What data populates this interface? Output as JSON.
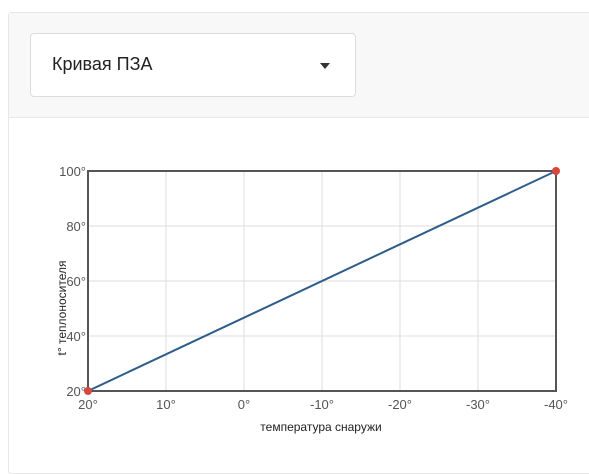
{
  "selector": {
    "selected": "Кривая ПЗА"
  },
  "chart_data": {
    "type": "line",
    "xlabel": "температура снаружи",
    "ylabel": "t° теплоносителя",
    "x_ticks": [
      "20°",
      "10°",
      "0°",
      "-10°",
      "-20°",
      "-30°",
      "-40°"
    ],
    "x_tick_values": [
      20,
      10,
      0,
      -10,
      -20,
      -30,
      -40
    ],
    "y_ticks": [
      "20°",
      "40°",
      "60°",
      "80°",
      "100°"
    ],
    "y_tick_values": [
      20,
      40,
      60,
      80,
      100
    ],
    "xlim": [
      20,
      -40
    ],
    "ylim": [
      20,
      100
    ],
    "grid": true,
    "series": [
      {
        "x": [
          20,
          -40
        ],
        "y": [
          20,
          100
        ]
      }
    ],
    "colors": {
      "line": "#2f5d8a",
      "point": "#d9463c",
      "grid": "#dddddd",
      "frame": "#555555"
    }
  }
}
